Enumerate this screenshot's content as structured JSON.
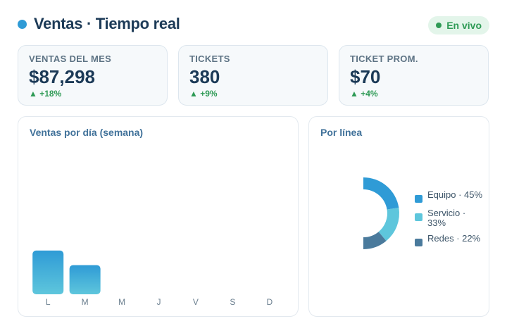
{
  "header": {
    "title": "Ventas · Tiempo real",
    "live_label": "En vivo"
  },
  "kpis": [
    {
      "label": "VENTAS DEL MES",
      "value": "$87,298",
      "delta": "▲ +18%"
    },
    {
      "label": "TICKETS",
      "value": "380",
      "delta": "▲ +9%"
    },
    {
      "label": "TICKET PROM.",
      "value": "$70",
      "delta": "▲ +4%"
    }
  ],
  "colors": {
    "accent": "#2f9bd6",
    "positive": "#2e9a55",
    "bar_top": "#2f9bd6",
    "bar_bottom": "#5ec6dc"
  },
  "chart_data": [
    {
      "type": "bar",
      "title": "Ventas por día (semana)",
      "categories": [
        "L",
        "M",
        "M",
        "J",
        "V",
        "S",
        "D"
      ],
      "values": [
        60,
        40,
        null,
        null,
        null,
        null,
        null
      ],
      "ylim": [
        0,
        200
      ],
      "grid": false
    },
    {
      "type": "pie",
      "title": "Por línea",
      "labels": [
        "Equipo · 45%",
        "Servicio · 33%",
        "Redes · 22%"
      ],
      "values": [
        45,
        33,
        22
      ],
      "colors": [
        "#2f9bd6",
        "#5ec6dc",
        "#4a7a9c"
      ],
      "legend": "right"
    }
  ]
}
